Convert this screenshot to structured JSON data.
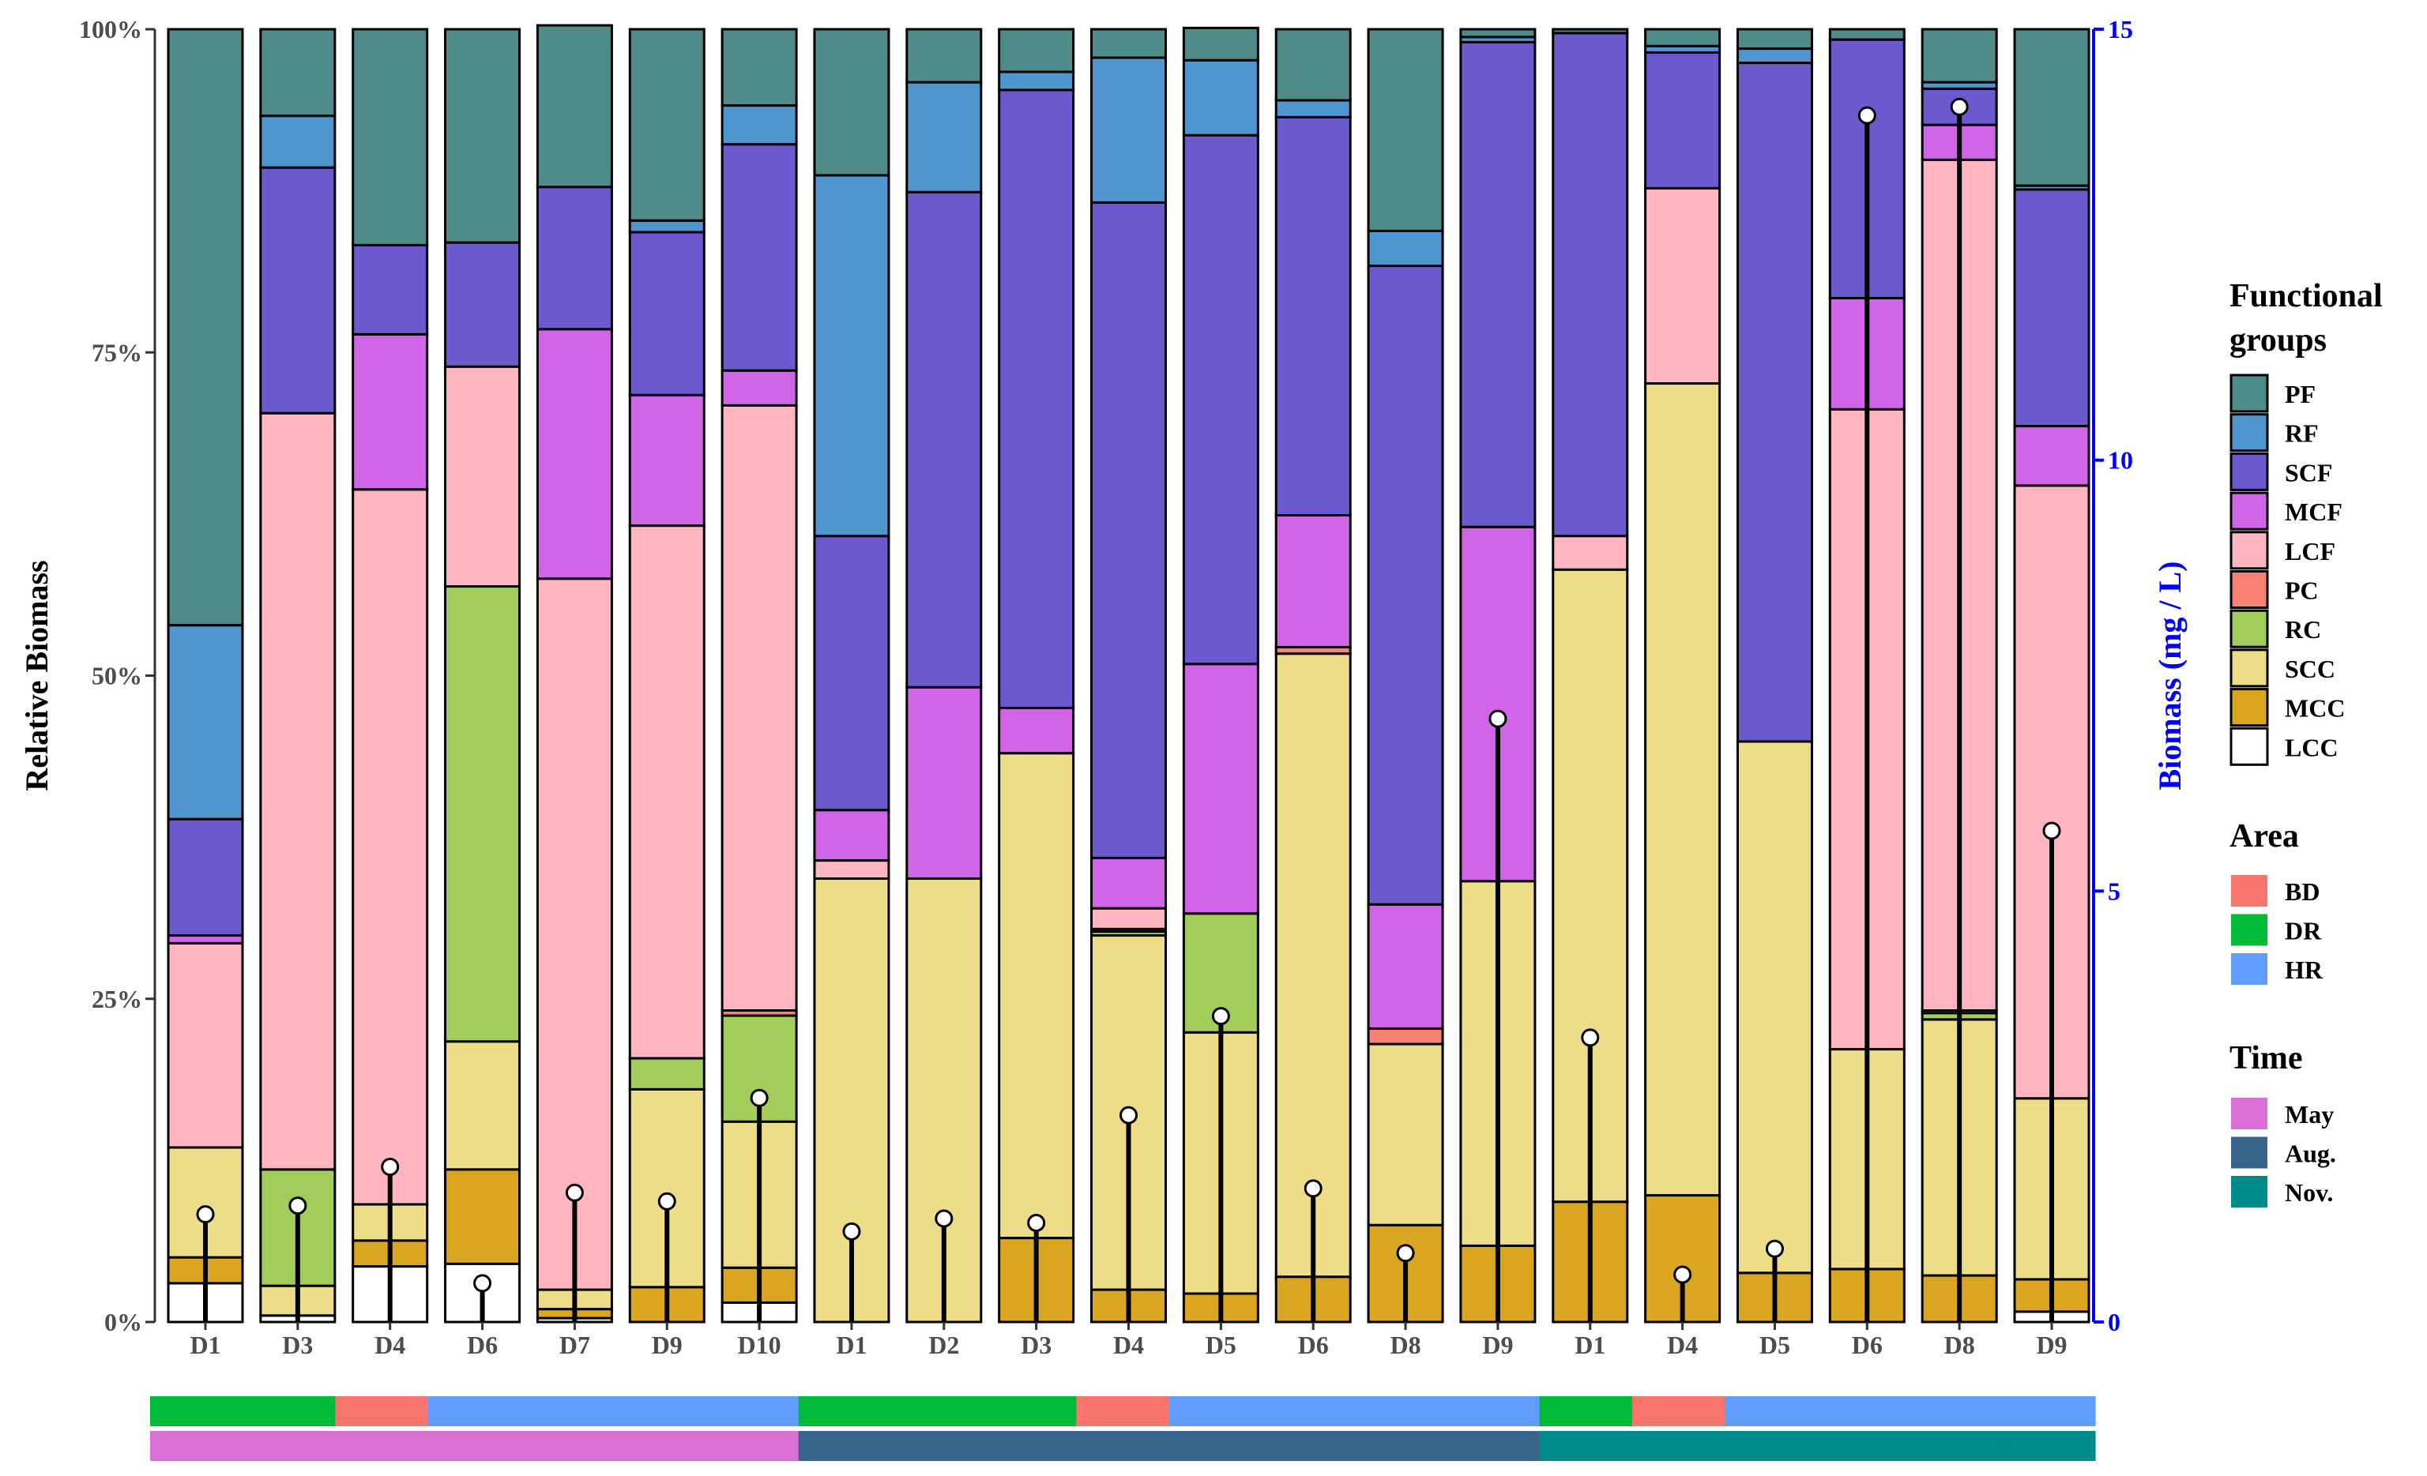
{
  "chart_data": {
    "type": "bar",
    "subtype": "stacked-100-percent-with-lollipop-secondary-axis",
    "title": "",
    "xlabel": "",
    "ylabel": "Relative Biomass",
    "y2label": "Biomass (mg / L)",
    "ylim": [
      0,
      100
    ],
    "y2lim": [
      0,
      15
    ],
    "yticks": [
      "0%",
      "25%",
      "50%",
      "75%",
      "100%"
    ],
    "y2ticks": [
      "0",
      "5",
      "10",
      "15"
    ],
    "y2_color": "#0000ff",
    "grid": false,
    "legend_position": "right",
    "categories": [
      "D1",
      "D3",
      "D4",
      "D6",
      "D7",
      "D9",
      "D10",
      "D1",
      "D2",
      "D3",
      "D4",
      "D5",
      "D6",
      "D8",
      "D9",
      "D1",
      "D4",
      "D5",
      "D6",
      "D8",
      "D9"
    ],
    "series": [
      {
        "name": "LCC",
        "color": "#ffffff",
        "values": [
          3,
          0.5,
          4.3,
          4.5,
          0.3,
          0,
          1.5,
          0,
          0,
          0,
          0,
          0,
          0,
          0,
          0,
          0,
          0,
          0,
          0,
          0,
          0.8
        ]
      },
      {
        "name": "MCC",
        "color": "#daa520",
        "values": [
          2,
          0,
          2,
          7.3,
          0.7,
          2.7,
          2.7,
          0,
          0,
          6.5,
          2.5,
          2.2,
          3.5,
          7.5,
          5.9,
          9.3,
          9.8,
          3.8,
          4.1,
          3.6,
          2.5
        ]
      },
      {
        "name": "SCC",
        "color": "#eedd88",
        "values": [
          8.5,
          2.3,
          2.8,
          9.9,
          1.5,
          15.3,
          11.3,
          34.3,
          34.3,
          37.5,
          27.4,
          20.2,
          48.2,
          14,
          28.2,
          48.9,
          62.8,
          41.1,
          17,
          19.8,
          14
        ]
      },
      {
        "name": "RC",
        "color": "#a3cd5a",
        "values": [
          0,
          9,
          0,
          35.2,
          0,
          2.4,
          8.2,
          0,
          0,
          0,
          0.3,
          9.2,
          0,
          0,
          0,
          0,
          0,
          0,
          0,
          0.5,
          0
        ]
      },
      {
        "name": "PC",
        "color": "#fa8072",
        "values": [
          0,
          0,
          0,
          0,
          0,
          0,
          0.4,
          0,
          0,
          0,
          0.2,
          0,
          0.5,
          1.2,
          0,
          0,
          0,
          0,
          0,
          0.2,
          0
        ]
      },
      {
        "name": "LCF",
        "color": "#ffb6c1",
        "values": [
          15.8,
          58.5,
          55.3,
          17,
          55,
          41.2,
          46.8,
          1.4,
          0,
          0,
          1.6,
          0,
          0,
          0,
          0,
          2.6,
          15.1,
          0,
          49.5,
          65.8,
          47.4
        ]
      },
      {
        "name": "MCF",
        "color": "#d065e8",
        "values": [
          0.6,
          0,
          12,
          0,
          19.3,
          10.1,
          2.7,
          3.9,
          14.8,
          3.5,
          3.9,
          19.3,
          10.2,
          9.6,
          27.4,
          0,
          0,
          0,
          8.6,
          2.7,
          4.6
        ]
      },
      {
        "name": "SCF",
        "color": "#6b5acd",
        "values": [
          9,
          19,
          6.9,
          9.6,
          11,
          12.6,
          17.5,
          21.2,
          38.3,
          47.8,
          50.7,
          40.9,
          30.8,
          49.4,
          37.5,
          38.9,
          10.5,
          52.5,
          20,
          2.8,
          18.3
        ]
      },
      {
        "name": "RF",
        "color": "#4f96d1",
        "values": [
          15,
          4,
          0,
          0,
          0,
          0.9,
          3,
          27.9,
          8.5,
          1.4,
          11.2,
          5.8,
          1.3,
          2.7,
          0.4,
          0,
          0.5,
          1.1,
          0,
          0.5,
          0.3
        ]
      },
      {
        "name": "PF",
        "color": "#4e8b89",
        "values": [
          46.1,
          6.7,
          16.7,
          16.5,
          12.5,
          14.8,
          5.9,
          11.3,
          4.1,
          3.3,
          2.2,
          2.5,
          5.5,
          15.6,
          0.6,
          0.3,
          1.3,
          1.5,
          0.8,
          4.1,
          12.1
        ]
      }
    ],
    "biomass_mg_per_L": [
      1.25,
      1.35,
      1.8,
      0.45,
      1.5,
      1.4,
      2.6,
      1.05,
      1.2,
      1.15,
      2.4,
      3.55,
      1.55,
      0.8,
      7,
      3.3,
      0.55,
      0.85,
      14,
      14.1,
      5.7
    ],
    "area": [
      "DR",
      "DR",
      "BD",
      "HR",
      "HR",
      "HR",
      "HR",
      "DR",
      "DR",
      "DR",
      "BD",
      "HR",
      "HR",
      "HR",
      "HR",
      "DR",
      "BD",
      "HR",
      "HR",
      "HR",
      "HR"
    ],
    "time": [
      "May",
      "May",
      "May",
      "May",
      "May",
      "May",
      "May",
      "Aug.",
      "Aug.",
      "Aug.",
      "Aug.",
      "Aug.",
      "Aug.",
      "Aug.",
      "Aug.",
      "Nov.",
      "Nov.",
      "Nov.",
      "Nov.",
      "Nov.",
      "Nov."
    ],
    "legends": [
      {
        "title": "Functional groups",
        "items": [
          {
            "label": "PF",
            "color": "#4e8b89"
          },
          {
            "label": "RF",
            "color": "#4f96d1"
          },
          {
            "label": "SCF",
            "color": "#6b5acd"
          },
          {
            "label": "MCF",
            "color": "#d065e8"
          },
          {
            "label": "LCF",
            "color": "#ffb6c1"
          },
          {
            "label": "PC",
            "color": "#fa8072"
          },
          {
            "label": "RC",
            "color": "#a3cd5a"
          },
          {
            "label": "SCC",
            "color": "#eedd88"
          },
          {
            "label": "MCC",
            "color": "#daa520"
          },
          {
            "label": "LCC",
            "color": "#ffffff"
          }
        ]
      },
      {
        "title": "Area",
        "items": [
          {
            "label": "BD",
            "color": "#f8766d"
          },
          {
            "label": "DR",
            "color": "#00ba38"
          },
          {
            "label": "HR",
            "color": "#619cff"
          }
        ]
      },
      {
        "title": "Time",
        "items": [
          {
            "label": "May",
            "color": "#da70d6"
          },
          {
            "label": "Aug.",
            "color": "#36648b"
          },
          {
            "label": "Nov.",
            "color": "#008b8b"
          }
        ]
      }
    ]
  }
}
